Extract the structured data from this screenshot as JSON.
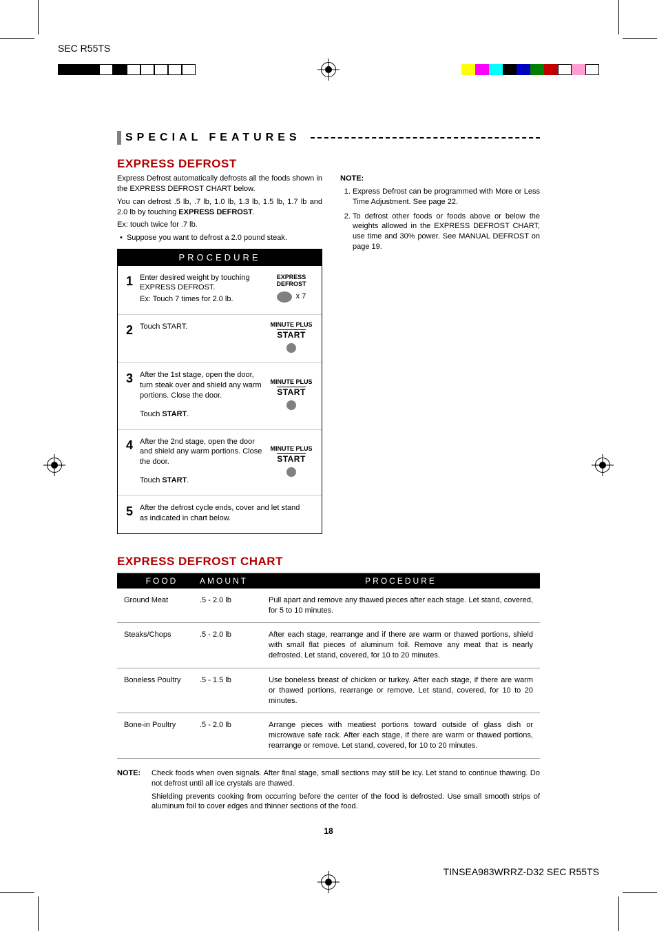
{
  "header_model": "SEC R55TS",
  "footer_code": "TINSEA983WRRZ-D32 SEC R55TS",
  "page_number": "18",
  "section_title": "SPECIAL FEATURES",
  "express_defrost": {
    "heading": "EXPRESS DEFROST",
    "intro1": "Express Defrost automatically defrosts all the foods shown in the EXPRESS DEFROST CHART below.",
    "intro2a": "You can defrost .5 lb, .7 lb, 1.0 lb, 1.3 lb, 1.5 lb, 1.7 lb and 2.0 lb by touching ",
    "intro2b": "EXPRESS DEFROST",
    "intro2c": ".",
    "intro3": "Ex: touch twice for .7 lb.",
    "bullet": "Suppose you want to defrost a 2.0 pound steak.",
    "note_label": "NOTE:",
    "note1": "Express Defrost can be programmed with More or Less Time Adjustment. See page 22.",
    "note2": "To defrost other foods or foods above or below the weights allowed in the EXPRESS DEFROST CHART, use time and 30% power. See MANUAL DEFROST on page 19."
  },
  "procedure": {
    "header": "PROCEDURE",
    "steps": [
      {
        "n": "1",
        "text": "Enter desired weight by touching EXPRESS DEFROST.\nEx: Touch 7 times for 2.0 lb.",
        "ctrl_label1": "EXPRESS",
        "ctrl_label2": "DEFROST",
        "ctrl_suffix": "x 7",
        "shape": "oval"
      },
      {
        "n": "2",
        "text": "Touch START.",
        "ctrl_label1": "MINUTE PLUS",
        "ctrl_start": "START",
        "shape": "dot"
      },
      {
        "n": "3",
        "text": "After the 1st stage, open the door, turn steak over and shield any warm portions. Close the door.",
        "text2a": "Touch ",
        "text2b": "START",
        "text2c": ".",
        "ctrl_label1": "MINUTE PLUS",
        "ctrl_start": "START",
        "shape": "dot"
      },
      {
        "n": "4",
        "text": "After the 2nd stage, open the door and shield any warm portions. Close the door.",
        "text2a": "Touch ",
        "text2b": "START",
        "text2c": ".",
        "ctrl_label1": "MINUTE PLUS",
        "ctrl_start": "START",
        "shape": "dot"
      },
      {
        "n": "5",
        "text": "After the defrost cycle ends, cover and let stand as indicated in chart below."
      }
    ]
  },
  "chart": {
    "heading": "EXPRESS DEFROST CHART",
    "col_food": "FOOD",
    "col_amount": "AMOUNT",
    "col_procedure": "PROCEDURE",
    "rows": [
      {
        "food": "Ground Meat",
        "amount": ".5  -  2.0  lb",
        "proc": "Pull apart and remove any thawed pieces after each stage. Let stand, covered, for 5 to 10 minutes."
      },
      {
        "food": "Steaks/Chops",
        "amount": ".5  -  2.0  lb",
        "proc": "After each stage, rearrange and if there are warm or thawed portions, shield with small flat pieces of aluminum foil. Remove any meat that is nearly defrosted. Let stand, covered, for 10 to 20 minutes."
      },
      {
        "food": "Boneless Poultry",
        "amount": ".5  -  1.5  lb",
        "proc": "Use boneless breast of chicken or turkey. After each stage, if there are warm or thawed portions, rearrange or remove. Let stand, covered, for 10 to 20 minutes."
      },
      {
        "food": "Bone-in Poultry",
        "amount": ".5  -  2.0  lb",
        "proc": "Arrange pieces with meatiest portions toward outside of glass dish or microwave safe rack. After each stage, if there are warm or thawed portions, rearrange or remove. Let stand, covered, for 10 to 20 minutes."
      }
    ]
  },
  "bottom_note": {
    "label": "NOTE:",
    "p1": "Check foods when oven signals. After final stage, small sections may still be icy. Let stand to continue thawing. Do not defrost until all ice crystals are thawed.",
    "p2": "Shielding prevents cooking from occurring before the center of the food is defrosted. Use small smooth strips of aluminum foil to cover edges and thinner sections of the food."
  },
  "colorbar_left": [
    "#000000",
    "#000000",
    "#000000",
    "#ffffff",
    "#000000",
    "#ffffff",
    "#ffffff",
    "#ffffff",
    "#ffffff",
    "#ffffff"
  ],
  "colorbar_right": [
    "#ffff00",
    "#ff00ff",
    "#00ffff",
    "#000000",
    "#0000c0",
    "#008000",
    "#c00000",
    "#ffffff",
    "#ff9ecf",
    "#ffffff"
  ]
}
